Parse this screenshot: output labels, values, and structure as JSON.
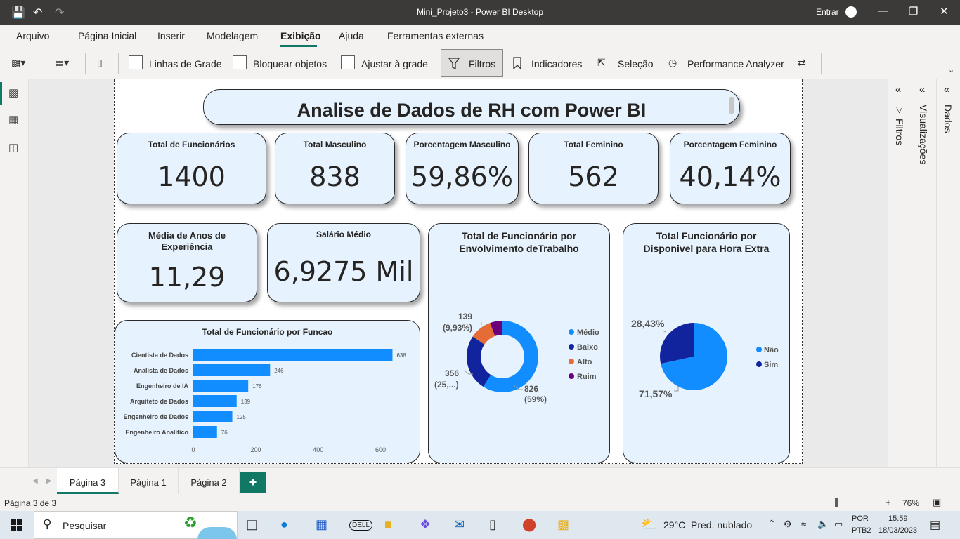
{
  "window": {
    "title": "Mini_Projeto3 - Power BI Desktop",
    "signin": "Entrar"
  },
  "menu": [
    "Arquivo",
    "Página Inicial",
    "Inserir",
    "Modelagem",
    "Exibição",
    "Ajuda",
    "Ferramentas externas"
  ],
  "ribbon": {
    "grid_lines": "Linhas de Grade",
    "lock_objects": "Bloquear objetos",
    "snap_grid": "Ajustar à grade",
    "filters": "Filtros",
    "bookmarks": "Indicadores",
    "selection": "Seleção",
    "performance": "Performance Analyzer"
  },
  "report": {
    "title": "Analise de Dados de RH com Power BI",
    "kpis": [
      {
        "label": "Total de Funcionários",
        "value": "1400"
      },
      {
        "label": "Total Masculino",
        "value": "838"
      },
      {
        "label": "Porcentagem Masculino",
        "value": "59,86%"
      },
      {
        "label": "Total Feminino",
        "value": "562"
      },
      {
        "label": "Porcentagem Feminino",
        "value": "40,14%"
      }
    ],
    "kpi_experience": {
      "label_line1": "Média de Anos de",
      "label_line2": "Experiência",
      "value": "11,29"
    },
    "kpi_salary": {
      "label": "Salário Médio",
      "value": "6,9275 Mil"
    }
  },
  "chart_data": [
    {
      "type": "bar",
      "title": "Total de Funcionário por Funcao",
      "categories": [
        "Cientista de Dados",
        "Analista de Dados",
        "Engenheiro de IA",
        "Arquiteto de Dados",
        "Engenheiro de Dados",
        "Engenheiro Analitico"
      ],
      "values": [
        638,
        246,
        176,
        139,
        125,
        76
      ],
      "xlim": [
        0,
        700
      ],
      "xticks": [
        "0",
        "200",
        "400",
        "600"
      ],
      "color": "#118dff"
    },
    {
      "type": "pie",
      "title_line1": "Total de Funcionário por",
      "title_line2": "Envolvimento deTrabalho",
      "donut": true,
      "categories": [
        "Médio",
        "Baixo",
        "Alto",
        "Ruim"
      ],
      "values": [
        826,
        356,
        139,
        79
      ],
      "colors": [
        "#118dff",
        "#12239e",
        "#e66c37",
        "#6b007b"
      ],
      "labels": [
        {
          "line1": "826",
          "line2": "(59%)"
        },
        {
          "line1": "356",
          "line2": "(25,...)"
        },
        {
          "line1": "139",
          "line2": "(9,93%)"
        }
      ],
      "legend": "right"
    },
    {
      "type": "pie",
      "title_line1": "Total Funcionário por",
      "title_line2": "Disponivel para Hora Extra",
      "categories": [
        "Não",
        "Sim"
      ],
      "values": [
        71.57,
        28.43
      ],
      "colors": [
        "#118dff",
        "#12239e"
      ],
      "labels": [
        "71,57%",
        "28,43%"
      ],
      "legend": "right"
    }
  ],
  "panes": {
    "filters": "Filtros",
    "visualizations": "Visualizações",
    "data": "Dados"
  },
  "pages": [
    "Página 3",
    "Página 1",
    "Página 2"
  ],
  "status": {
    "page_info": "Página 3 de 3",
    "zoom": "76%"
  },
  "taskbar": {
    "search": "Pesquisar",
    "weather_temp": "29°C",
    "weather_desc": "Pred. nublado",
    "lang1": "POR",
    "lang2": "PTB2",
    "time": "15:59",
    "date": "18/03/2023"
  }
}
